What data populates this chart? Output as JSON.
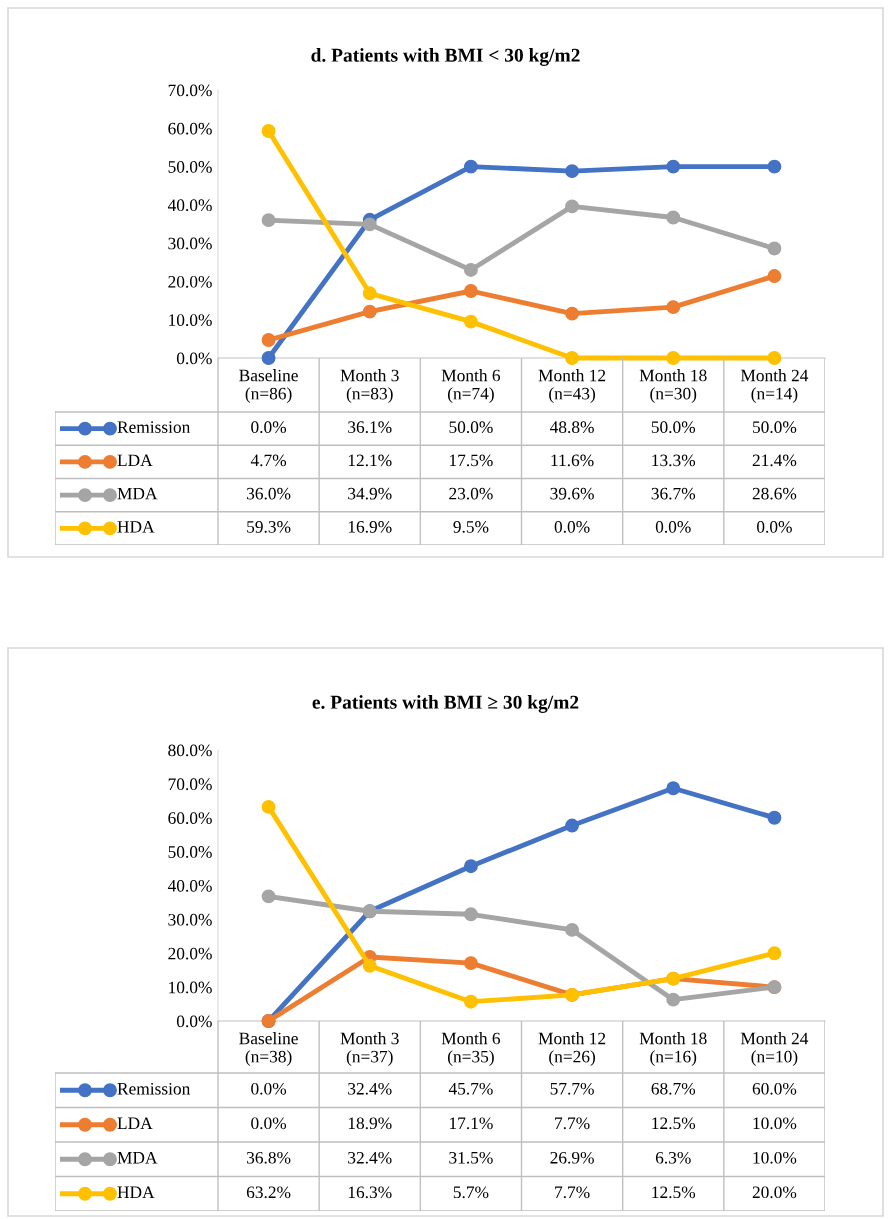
{
  "chart_data": [
    {
      "type": "line",
      "title": "d. Patients with BMI < 30 kg/m2",
      "categories": [
        "Baseline\n(n=86)",
        "Month 3\n(n=83)",
        "Month 6\n(n=74)",
        "Month 12\n(n=43)",
        "Month 18\n(n=30)",
        "Month 24\n(n=14)"
      ],
      "series": [
        {
          "name": "Remission",
          "color": "#4472c4",
          "values": [
            0.0,
            36.1,
            50.0,
            48.8,
            50.0,
            50.0
          ],
          "value_labels": [
            "0.0%",
            "36.1%",
            "50.0%",
            "48.8%",
            "50.0%",
            "50.0%"
          ]
        },
        {
          "name": "LDA",
          "color": "#ed7d31",
          "values": [
            4.7,
            12.1,
            17.5,
            11.6,
            13.3,
            21.4
          ],
          "value_labels": [
            "4.7%",
            "12.1%",
            "17.5%",
            "11.6%",
            "13.3%",
            "21.4%"
          ]
        },
        {
          "name": "MDA",
          "color": "#a5a5a5",
          "values": [
            36.0,
            34.9,
            23.0,
            39.6,
            36.7,
            28.6
          ],
          "value_labels": [
            "36.0%",
            "34.9%",
            "23.0%",
            "39.6%",
            "36.7%",
            "28.6%"
          ]
        },
        {
          "name": "HDA",
          "color": "#ffc000",
          "values": [
            59.3,
            16.9,
            9.5,
            0.0,
            0.0,
            0.0
          ],
          "value_labels": [
            "59.3%",
            "16.9%",
            "9.5%",
            "0.0%",
            "0.0%",
            "0.0%"
          ]
        }
      ],
      "ylim": [
        0,
        70
      ],
      "yticks": [
        {
          "value": 0,
          "label": "0.0%"
        },
        {
          "value": 10,
          "label": "10.0%"
        },
        {
          "value": 20,
          "label": "20.0%"
        },
        {
          "value": 30,
          "label": "30.0%"
        },
        {
          "value": 40,
          "label": "40.0%"
        },
        {
          "value": 50,
          "label": "50.0%"
        },
        {
          "value": 60,
          "label": "60.0%"
        },
        {
          "value": 70,
          "label": "70.0%"
        }
      ],
      "marker": "circle",
      "line_style": "solid",
      "legend": "bottom"
    },
    {
      "type": "line",
      "title": "e. Patients with BMI ≥ 30 kg/m2",
      "categories": [
        "Baseline\n(n=38)",
        "Month 3\n(n=37)",
        "Month 6\n(n=35)",
        "Month 12\n(n=26)",
        "Month 18\n(n=16)",
        "Month 24\n(n=10)"
      ],
      "series": [
        {
          "name": "Remission",
          "color": "#4472c4",
          "values": [
            0.0,
            32.4,
            45.7,
            57.7,
            68.7,
            60.0
          ],
          "value_labels": [
            "0.0%",
            "32.4%",
            "45.7%",
            "57.7%",
            "68.7%",
            "60.0%"
          ]
        },
        {
          "name": "LDA",
          "color": "#ed7d31",
          "values": [
            0.0,
            18.9,
            17.1,
            7.7,
            12.5,
            10.0
          ],
          "value_labels": [
            "0.0%",
            "18.9%",
            "17.1%",
            "7.7%",
            "12.5%",
            "10.0%"
          ]
        },
        {
          "name": "MDA",
          "color": "#a5a5a5",
          "values": [
            36.8,
            32.4,
            31.5,
            26.9,
            6.3,
            10.0
          ],
          "value_labels": [
            "36.8%",
            "32.4%",
            "31.5%",
            "26.9%",
            "6.3%",
            "10.0%"
          ]
        },
        {
          "name": "HDA",
          "color": "#ffc000",
          "values": [
            63.2,
            16.3,
            5.7,
            7.7,
            12.5,
            20.0
          ],
          "value_labels": [
            "63.2%",
            "16.3%",
            "5.7%",
            "7.7%",
            "12.5%",
            "20.0%"
          ]
        }
      ],
      "ylim": [
        0,
        80
      ],
      "yticks": [
        {
          "value": 0,
          "label": "0.0%"
        },
        {
          "value": 10,
          "label": "10.0%"
        },
        {
          "value": 20,
          "label": "20.0%"
        },
        {
          "value": 30,
          "label": "30.0%"
        },
        {
          "value": 40,
          "label": "40.0%"
        },
        {
          "value": 50,
          "label": "50.0%"
        },
        {
          "value": 60,
          "label": "60.0%"
        },
        {
          "value": 70,
          "label": "70.0%"
        },
        {
          "value": 80,
          "label": "80.0%"
        }
      ],
      "marker": "circle",
      "line_style": "solid",
      "legend": "bottom"
    }
  ]
}
